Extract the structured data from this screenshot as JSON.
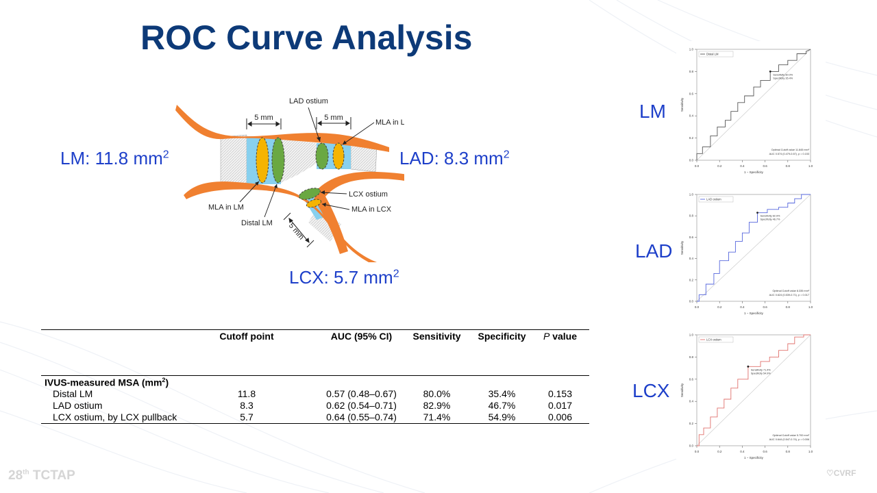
{
  "slide": {
    "title": "ROC Curve Analysis",
    "footer_conference": "TCTAP",
    "footer_edition": "28",
    "footer_edition_sup": "th",
    "footer_logo": "CVRF"
  },
  "diagram": {
    "lm_area": "LM: 11.8 mm",
    "lad_area": "LAD: 8.3 mm",
    "lcx_area": "LCX: 5.7 mm",
    "unit_sup": "2",
    "labels": {
      "lad_ostium": "LAD ostium",
      "mla_lad": "MLA in LAD",
      "lcx_ostium": "LCX ostium",
      "mla_lcx": "MLA in LCX",
      "mla_lm": "MLA in LM",
      "distal_lm": "Distal LM",
      "five_mm": "5 mm"
    },
    "colors": {
      "vessel": "#f08030",
      "lumen": "#88d0ee",
      "mla": "#f5b400",
      "site": "#6aa842"
    }
  },
  "roc_panels": [
    {
      "id": "lm",
      "label": "LM",
      "legend": "Distal LM",
      "color": "#555555",
      "sens_text": "Sensitivity 80.0%",
      "spec_text": "Specificity 35.4%",
      "cutoff_text": "Optimal Cutoff value 11.845 mm²",
      "auc_text": "AUC 0.574 (0.479-0.67), p = 0.153"
    },
    {
      "id": "lad",
      "label": "LAD",
      "legend": "LAD ostium",
      "color": "#5566dd",
      "sens_text": "Sensitivity 82.9%",
      "spec_text": "Specificity 46.7%",
      "cutoff_text": "Optimal Cutoff value 8.335 mm²",
      "auc_text": "AUC 0.624 (0.539-0.71), p = 0.017"
    },
    {
      "id": "lcx",
      "label": "LCX",
      "legend": "LCX ostium",
      "color": "#e0706c",
      "sens_text": "Sensitivity 71.4%",
      "spec_text": "Specificity 54.9%",
      "cutoff_text": "Optimal Cutoff value 5.700 mm²",
      "auc_text": "AUC 0.644 (0.547-0.74), p = 0.006"
    }
  ],
  "roc_axes": {
    "xlabel": "1 − Specificity",
    "ylabel": "Sensitivity",
    "ticks": [
      "0.0",
      "0.2",
      "0.4",
      "0.6",
      "0.8",
      "1.0"
    ]
  },
  "table": {
    "headers": [
      "Cutoff point",
      "AUC (95% CI)",
      "Sensitivity",
      "Specificity"
    ],
    "p_header_italic": "P",
    "p_header_rest": " value",
    "section_label": "IVUS-measured MSA (mm",
    "section_sup": "2",
    "section_close": ")",
    "rows": [
      {
        "label": "Distal LM",
        "cutoff": "11.8",
        "auc": "0.57 (0.48–0.67)",
        "sensitivity": "80.0%",
        "specificity": "35.4%",
        "p": "0.153"
      },
      {
        "label": "LAD ostium",
        "cutoff": "8.3",
        "auc": "0.62 (0.54–0.71)",
        "sensitivity": "82.9%",
        "specificity": "46.7%",
        "p": "0.017"
      },
      {
        "label": "LCX ostium, by LCX pullback",
        "cutoff": "5.7",
        "auc": "0.64 (0.55–0.74)",
        "sensitivity": "71.4%",
        "specificity": "54.9%",
        "p": "0.006"
      }
    ]
  },
  "chart_data": [
    {
      "type": "line",
      "title": "",
      "xlabel": "1 − Specificity",
      "ylabel": "Sensitivity",
      "xlim": [
        0,
        1
      ],
      "ylim": [
        0,
        1
      ],
      "series": [
        {
          "name": "Distal LM",
          "x": [
            0,
            0,
            0.05,
            0.05,
            0.12,
            0.12,
            0.18,
            0.18,
            0.25,
            0.25,
            0.3,
            0.3,
            0.36,
            0.36,
            0.42,
            0.42,
            0.5,
            0.5,
            0.56,
            0.56,
            0.646,
            0.646,
            0.72,
            0.72,
            0.8,
            0.8,
            0.88,
            0.88,
            0.96,
            0.96,
            1.0
          ],
          "y": [
            0,
            0.06,
            0.06,
            0.12,
            0.12,
            0.22,
            0.22,
            0.3,
            0.3,
            0.36,
            0.36,
            0.44,
            0.44,
            0.52,
            0.52,
            0.58,
            0.58,
            0.66,
            0.66,
            0.72,
            0.72,
            0.8,
            0.8,
            0.86,
            0.86,
            0.9,
            0.9,
            0.96,
            0.96,
            0.98,
            1.0
          ]
        }
      ],
      "optimal_point": {
        "x": 0.646,
        "y": 0.8
      }
    },
    {
      "type": "line",
      "title": "",
      "xlabel": "1 − Specificity",
      "ylabel": "Sensitivity",
      "xlim": [
        0,
        1
      ],
      "ylim": [
        0,
        1
      ],
      "series": [
        {
          "name": "LAD ostium",
          "x": [
            0,
            0.02,
            0.02,
            0.08,
            0.08,
            0.15,
            0.15,
            0.2,
            0.2,
            0.28,
            0.28,
            0.34,
            0.34,
            0.4,
            0.4,
            0.46,
            0.46,
            0.533,
            0.533,
            0.62,
            0.62,
            0.72,
            0.72,
            0.8,
            0.8,
            0.86,
            0.86,
            0.92,
            0.92,
            1.0
          ],
          "y": [
            0,
            0,
            0.06,
            0.06,
            0.16,
            0.16,
            0.26,
            0.26,
            0.38,
            0.38,
            0.46,
            0.46,
            0.56,
            0.56,
            0.64,
            0.64,
            0.74,
            0.74,
            0.829,
            0.829,
            0.86,
            0.86,
            0.88,
            0.88,
            0.92,
            0.92,
            0.96,
            0.96,
            1.0,
            1.0
          ]
        }
      ],
      "optimal_point": {
        "x": 0.533,
        "y": 0.829
      }
    },
    {
      "type": "line",
      "title": "",
      "xlabel": "1 − Specificity",
      "ylabel": "Sensitivity",
      "xlim": [
        0,
        1
      ],
      "ylim": [
        0,
        1
      ],
      "series": [
        {
          "name": "LCX ostium",
          "x": [
            0,
            0.02,
            0.02,
            0.06,
            0.06,
            0.12,
            0.12,
            0.18,
            0.18,
            0.24,
            0.24,
            0.3,
            0.3,
            0.36,
            0.36,
            0.451,
            0.451,
            0.56,
            0.56,
            0.64,
            0.64,
            0.72,
            0.72,
            0.8,
            0.8,
            0.86,
            0.86,
            0.94,
            0.94,
            1.0
          ],
          "y": [
            0,
            0,
            0.1,
            0.1,
            0.16,
            0.16,
            0.26,
            0.26,
            0.34,
            0.34,
            0.42,
            0.42,
            0.52,
            0.52,
            0.6,
            0.6,
            0.714,
            0.714,
            0.76,
            0.76,
            0.8,
            0.8,
            0.86,
            0.86,
            0.92,
            0.92,
            0.98,
            0.98,
            1.0,
            1.0
          ]
        }
      ],
      "optimal_point": {
        "x": 0.451,
        "y": 0.714
      }
    }
  ]
}
